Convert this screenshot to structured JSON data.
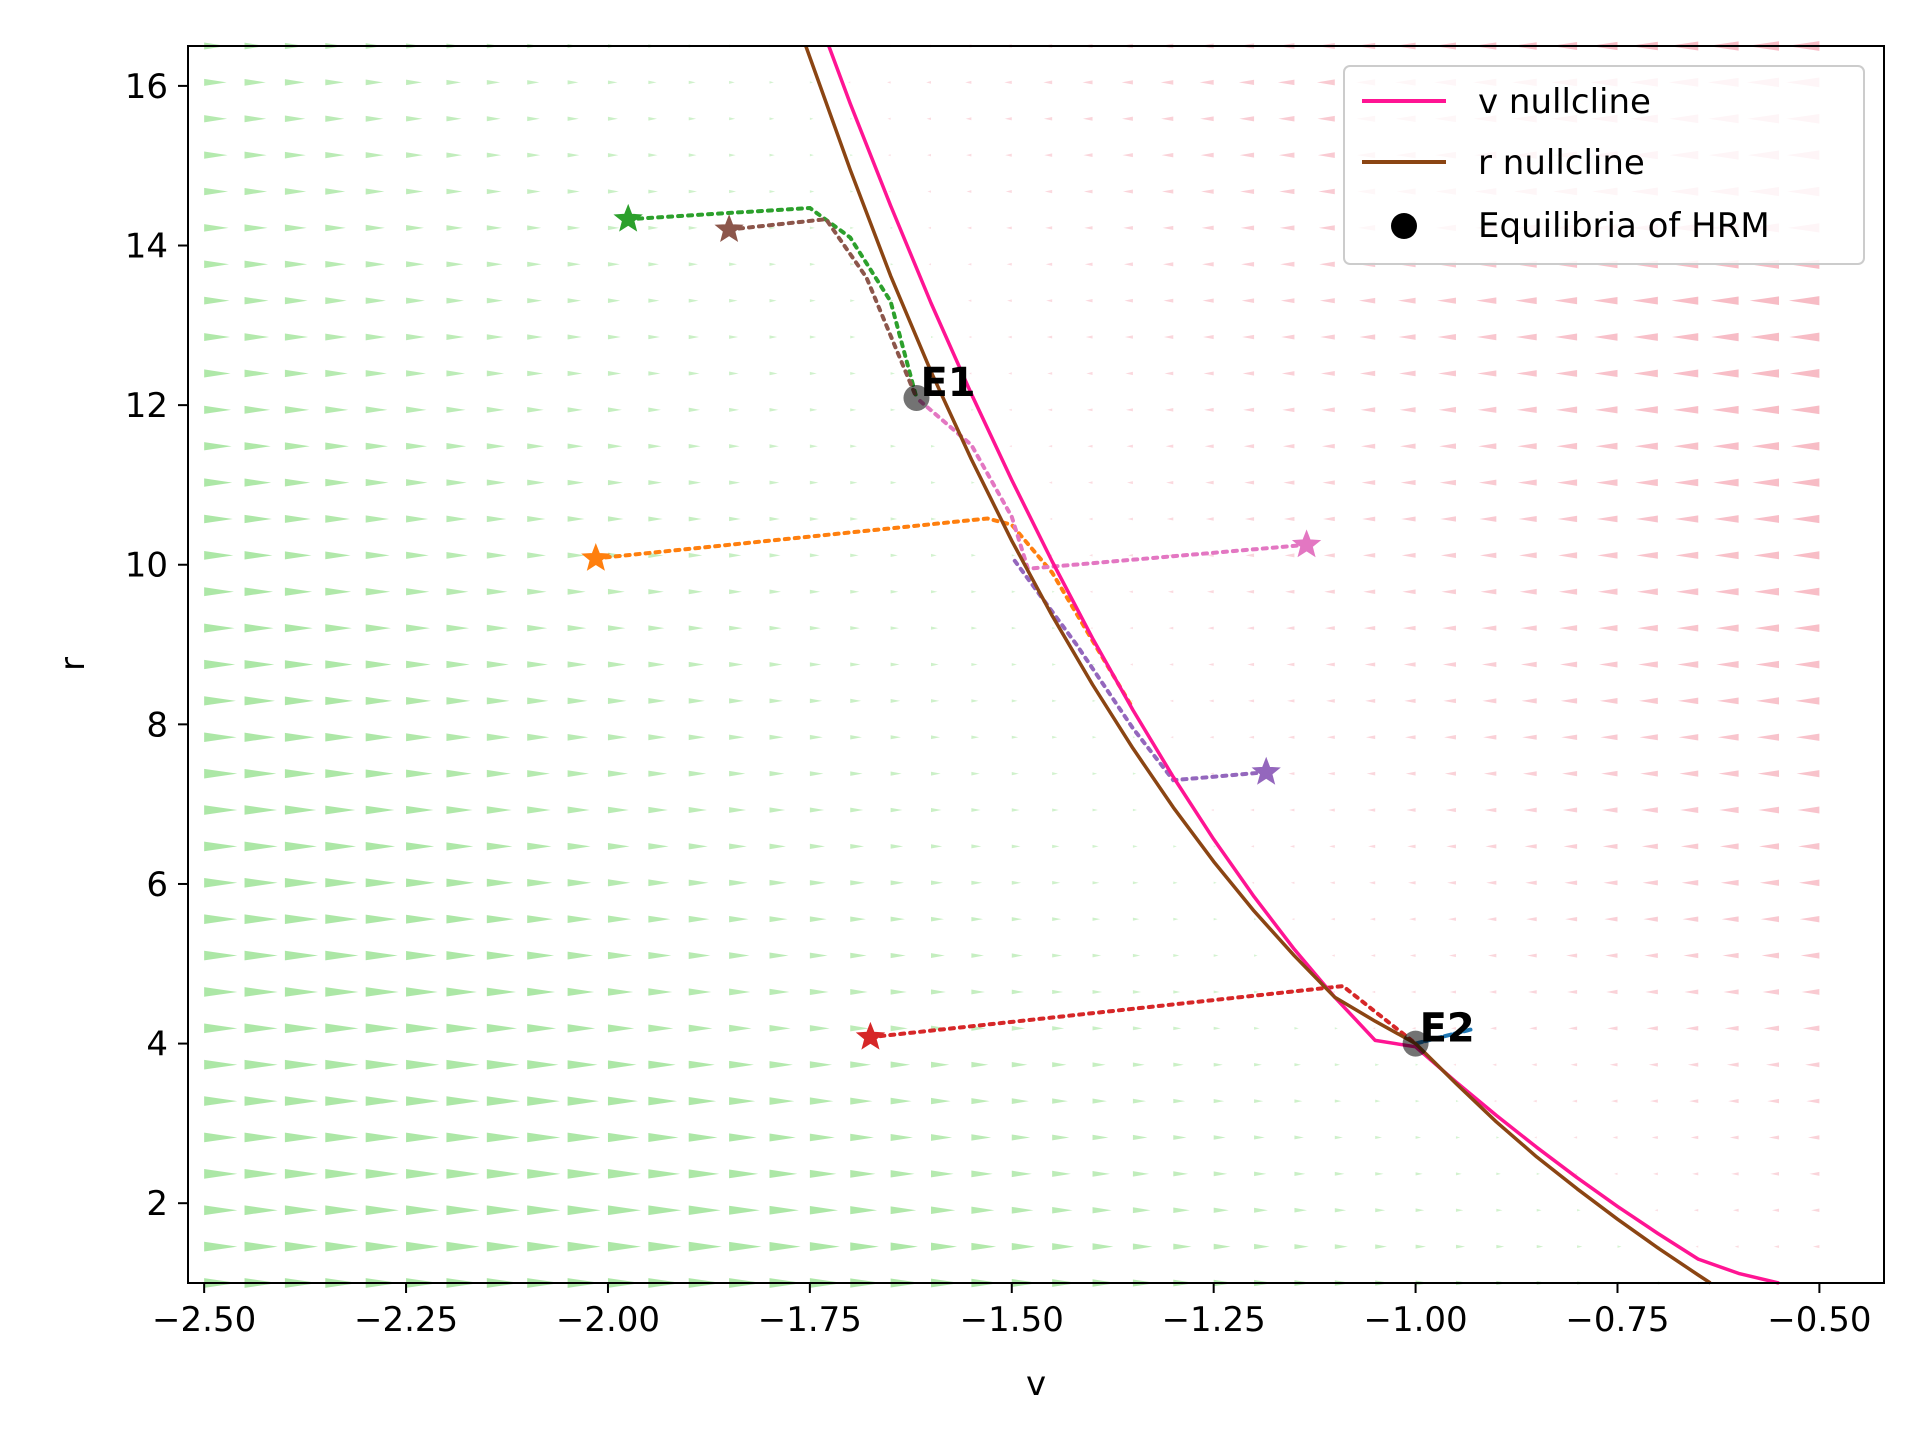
{
  "chart_data": {
    "type": "line",
    "title": "",
    "xlabel": "v",
    "ylabel": "r",
    "xlim": [
      -2.52,
      -0.42
    ],
    "ylim": [
      1.0,
      16.5
    ],
    "xticks": [
      {
        "value": -2.5,
        "label": "−2.50"
      },
      {
        "value": -2.25,
        "label": "−2.25"
      },
      {
        "value": -2.0,
        "label": "−2.00"
      },
      {
        "value": -1.75,
        "label": "−1.75"
      },
      {
        "value": -1.5,
        "label": "−1.50"
      },
      {
        "value": -1.25,
        "label": "−1.25"
      },
      {
        "value": -1.0,
        "label": "−1.00"
      },
      {
        "value": -0.75,
        "label": "−0.75"
      },
      {
        "value": -0.5,
        "label": "−0.50"
      }
    ],
    "yticks": [
      {
        "value": 2,
        "label": "2"
      },
      {
        "value": 4,
        "label": "4"
      },
      {
        "value": 6,
        "label": "6"
      },
      {
        "value": 8,
        "label": "8"
      },
      {
        "value": 10,
        "label": "10"
      },
      {
        "value": 12,
        "label": "12"
      },
      {
        "value": 14,
        "label": "14"
      },
      {
        "value": 16,
        "label": "16"
      }
    ],
    "grid": false,
    "legend_position": "top-right",
    "vector_field": {
      "description": "r-direction negligible; v-direction arrows point right (green) left of nullcline, left (pink) right of nullcline",
      "color_right": "#a8e6a1",
      "color_left": "#f7b8c2"
    },
    "series": [
      {
        "name": "v nullcline",
        "color": "#ff1493",
        "style": "solid",
        "points": [
          [
            -1.7265,
            16.5
          ],
          [
            -1.7,
            15.78
          ],
          [
            -1.65,
            14.5
          ],
          [
            -1.6,
            13.28
          ],
          [
            -1.55,
            12.14
          ],
          [
            -1.5,
            11.06
          ],
          [
            -1.45,
            10.04
          ],
          [
            -1.4,
            9.08
          ],
          [
            -1.35,
            8.18
          ],
          [
            -1.3,
            7.34
          ],
          [
            -1.25,
            6.56
          ],
          [
            -1.2,
            5.84
          ],
          [
            -1.15,
            5.18
          ],
          [
            -1.1,
            4.58
          ],
          [
            -1.05,
            4.04
          ],
          [
            -1.0,
            3.96
          ],
          [
            -0.95,
            3.52
          ],
          [
            -0.9,
            3.1
          ],
          [
            -0.85,
            2.7
          ],
          [
            -0.8,
            2.32
          ],
          [
            -0.75,
            1.96
          ],
          [
            -0.7,
            1.62
          ],
          [
            -0.65,
            1.3
          ],
          [
            -0.6,
            1.12
          ],
          [
            -0.55,
            1.0
          ]
        ]
      },
      {
        "name": "r nullcline",
        "color": "#8b4513",
        "style": "solid",
        "points": [
          [
            -1.755,
            16.5
          ],
          [
            -1.7,
            14.95
          ],
          [
            -1.65,
            13.62
          ],
          [
            -1.6,
            12.42
          ],
          [
            -1.55,
            11.32
          ],
          [
            -1.5,
            10.3
          ],
          [
            -1.45,
            9.36
          ],
          [
            -1.4,
            8.5
          ],
          [
            -1.35,
            7.7
          ],
          [
            -1.3,
            6.96
          ],
          [
            -1.25,
            6.28
          ],
          [
            -1.2,
            5.66
          ],
          [
            -1.15,
            5.1
          ],
          [
            -1.1,
            4.58
          ],
          [
            -1.05,
            4.28
          ],
          [
            -1.0,
            4.0
          ],
          [
            -0.95,
            3.5
          ],
          [
            -0.9,
            3.02
          ],
          [
            -0.85,
            2.58
          ],
          [
            -0.8,
            2.18
          ],
          [
            -0.75,
            1.8
          ],
          [
            -0.7,
            1.44
          ],
          [
            -0.65,
            1.1
          ],
          [
            -0.635,
            1.0
          ]
        ]
      }
    ],
    "equilibria": {
      "name": "Equilibria of HRM",
      "color": "#000000",
      "points": [
        {
          "label": "E1",
          "v": -1.618,
          "r": 12.09
        },
        {
          "label": "E2",
          "v": -1.0,
          "r": 4.0
        }
      ]
    },
    "trajectories": [
      {
        "color": "#2ca02c",
        "start": [
          -1.975,
          14.33
        ],
        "path": [
          [
            -1.975,
            14.33
          ],
          [
            -1.75,
            14.47
          ],
          [
            -1.7,
            14.1
          ],
          [
            -1.65,
            13.3
          ],
          [
            -1.618,
            12.09
          ]
        ]
      },
      {
        "color": "#8c564b",
        "start": [
          -1.85,
          14.2
        ],
        "path": [
          [
            -1.85,
            14.2
          ],
          [
            -1.73,
            14.33
          ],
          [
            -1.68,
            13.6
          ],
          [
            -1.618,
            12.09
          ]
        ]
      },
      {
        "color": "#ff7f0e",
        "start": [
          -2.015,
          10.08
        ],
        "path": [
          [
            -2.015,
            10.08
          ],
          [
            -1.53,
            10.58
          ],
          [
            -1.5,
            10.5
          ],
          [
            -1.45,
            9.9
          ],
          [
            -1.4,
            9.05
          ],
          [
            -1.35,
            8.2
          ]
        ]
      },
      {
        "color": "#e377c2",
        "start": [
          -1.135,
          10.25
        ],
        "path": [
          [
            -1.135,
            10.25
          ],
          [
            -1.48,
            9.95
          ],
          [
            -1.5,
            10.6
          ],
          [
            -1.55,
            11.5
          ],
          [
            -1.618,
            12.09
          ]
        ]
      },
      {
        "color": "#9467bd",
        "start": [
          -1.185,
          7.4
        ],
        "path": [
          [
            -1.185,
            7.4
          ],
          [
            -1.3,
            7.3
          ],
          [
            -1.35,
            7.95
          ],
          [
            -1.42,
            9.0
          ],
          [
            -1.5,
            10.1
          ]
        ]
      },
      {
        "color": "#d62728",
        "start": [
          -1.675,
          4.08
        ],
        "path": [
          [
            -1.675,
            4.08
          ],
          [
            -1.09,
            4.72
          ],
          [
            -1.05,
            4.4
          ],
          [
            -1.0,
            4.0
          ]
        ]
      },
      {
        "color": "#1f77b4",
        "start": [
          -1.0,
          4.0
        ],
        "path": [
          [
            -1.0,
            4.0
          ],
          [
            -0.93,
            4.18
          ],
          [
            -1.0,
            4.0
          ]
        ]
      }
    ]
  },
  "legend": {
    "items": [
      {
        "label": "v nullcline",
        "color": "#ff1493",
        "kind": "line"
      },
      {
        "label": "r nullcline",
        "color": "#8b4513",
        "kind": "line"
      },
      {
        "label": "Equilibria of HRM",
        "color": "#000000",
        "kind": "dot"
      }
    ]
  }
}
